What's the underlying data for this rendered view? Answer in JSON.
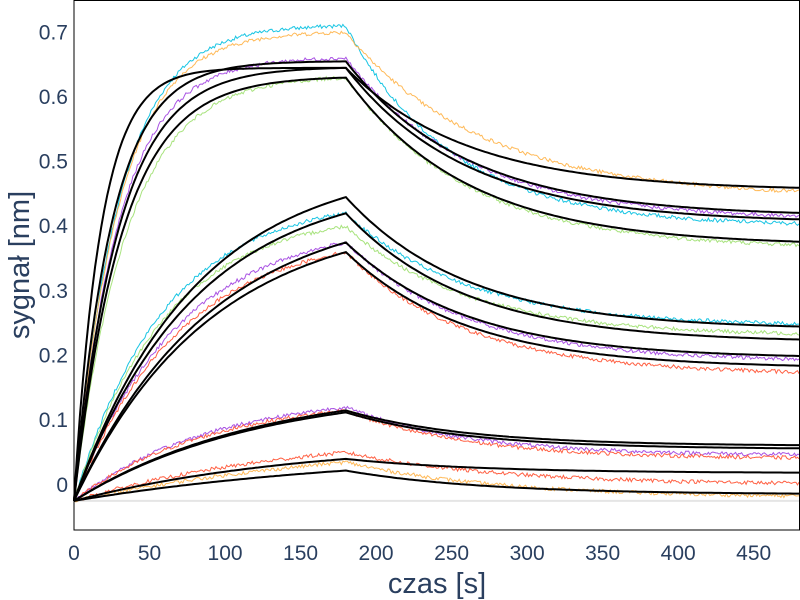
{
  "chart_data": {
    "type": "line",
    "xlabel": "czas [s]",
    "ylabel": "sygnał [nm]",
    "xlim": [
      0,
      480
    ],
    "ylim": [
      -0.07,
      0.75
    ],
    "x_ticks": [
      0,
      50,
      100,
      150,
      200,
      250,
      300,
      350,
      400,
      450
    ],
    "y_ticks": [
      0,
      0.1,
      0.2,
      0.3,
      0.4,
      0.5,
      0.6,
      0.7
    ],
    "grid": false,
    "legend": "none",
    "association_end": 180,
    "baseline": -0.025,
    "fit_color": "#000000",
    "series": [
      {
        "color": "#00bfe0",
        "peak": 0.71,
        "tau_on": 30,
        "tau_off": 70,
        "end": 0.4
      },
      {
        "color": "#ffb347",
        "peak": 0.7,
        "tau_on": 30,
        "tau_off": 90,
        "end": 0.445
      },
      {
        "color": "#a040e0",
        "peak": 0.66,
        "tau_on": 30,
        "tau_off": 80,
        "end": 0.41
      },
      {
        "color": "#9fe070",
        "peak": 0.63,
        "tau_on": 35,
        "tau_off": 80,
        "end": 0.365
      },
      {
        "color": "#00bfe0",
        "peak": 0.42,
        "tau_on": 60,
        "tau_off": 80,
        "end": 0.245
      },
      {
        "color": "#9fe070",
        "peak": 0.4,
        "tau_on": 60,
        "tau_off": 80,
        "end": 0.23
      },
      {
        "color": "#a040e0",
        "peak": 0.375,
        "tau_on": 70,
        "tau_off": 80,
        "end": 0.19
      },
      {
        "color": "#ff5030",
        "peak": 0.36,
        "tau_on": 70,
        "tau_off": 80,
        "end": 0.17
      },
      {
        "color": "#a040e0",
        "peak": 0.12,
        "tau_on": 90,
        "tau_off": 80,
        "end": 0.045
      },
      {
        "color": "#ff5030",
        "peak": 0.115,
        "tau_on": 90,
        "tau_off": 80,
        "end": 0.04
      },
      {
        "color": "#ff5030",
        "peak": 0.05,
        "tau_on": 150,
        "tau_off": 100,
        "end": 0.0
      },
      {
        "color": "#ffb347",
        "peak": 0.035,
        "tau_on": 200,
        "tau_off": 100,
        "end": -0.02
      }
    ],
    "fits": [
      {
        "peak": 0.645,
        "tau_on": 18,
        "tau_off": 80,
        "end": 0.455
      },
      {
        "peak": 0.655,
        "tau_on": 25,
        "tau_off": 80,
        "end": 0.415
      },
      {
        "peak": 0.645,
        "tau_on": 30,
        "tau_off": 80,
        "end": 0.405
      },
      {
        "peak": 0.63,
        "tau_on": 32,
        "tau_off": 80,
        "end": 0.37
      },
      {
        "peak": 0.445,
        "tau_on": 80,
        "tau_off": 80,
        "end": 0.24
      },
      {
        "peak": 0.42,
        "tau_on": 80,
        "tau_off": 80,
        "end": 0.22
      },
      {
        "peak": 0.375,
        "tau_on": 90,
        "tau_off": 80,
        "end": 0.195
      },
      {
        "peak": 0.36,
        "tau_on": 90,
        "tau_off": 80,
        "end": 0.18
      },
      {
        "peak": 0.115,
        "tau_on": 120,
        "tau_off": 80,
        "end": 0.06
      },
      {
        "peak": 0.112,
        "tau_on": 120,
        "tau_off": 80,
        "end": 0.055
      },
      {
        "peak": 0.04,
        "tau_on": 150,
        "tau_off": 90,
        "end": 0.018
      },
      {
        "peak": 0.022,
        "tau_on": 200,
        "tau_off": 90,
        "end": -0.015
      }
    ]
  }
}
